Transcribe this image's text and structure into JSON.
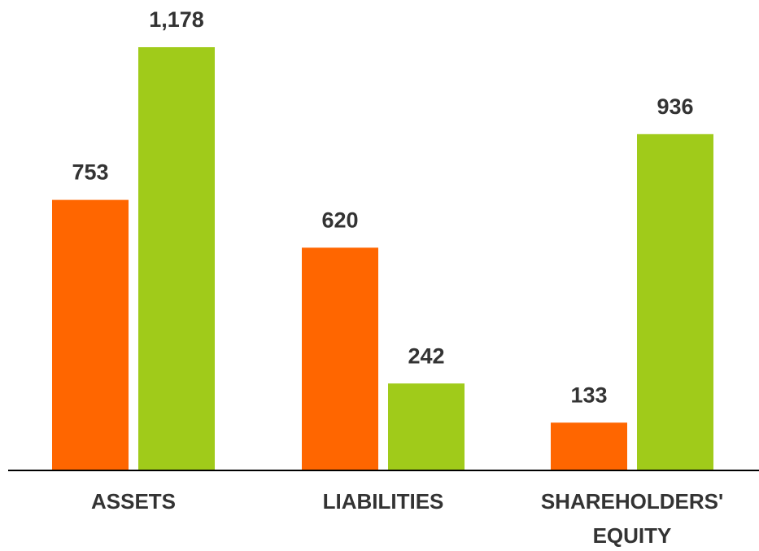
{
  "chart_data": {
    "type": "bar",
    "categories": [
      "ASSETS",
      "LIABILITIES",
      "SHAREHOLDERS' EQUITY"
    ],
    "series": [
      {
        "color": "#ff6600",
        "values": [
          753,
          620,
          133
        ]
      },
      {
        "color": "#a0cb1a",
        "values": [
          1178,
          242,
          936
        ],
        "value_labels": [
          "1,178",
          "242",
          "936"
        ]
      }
    ]
  }
}
